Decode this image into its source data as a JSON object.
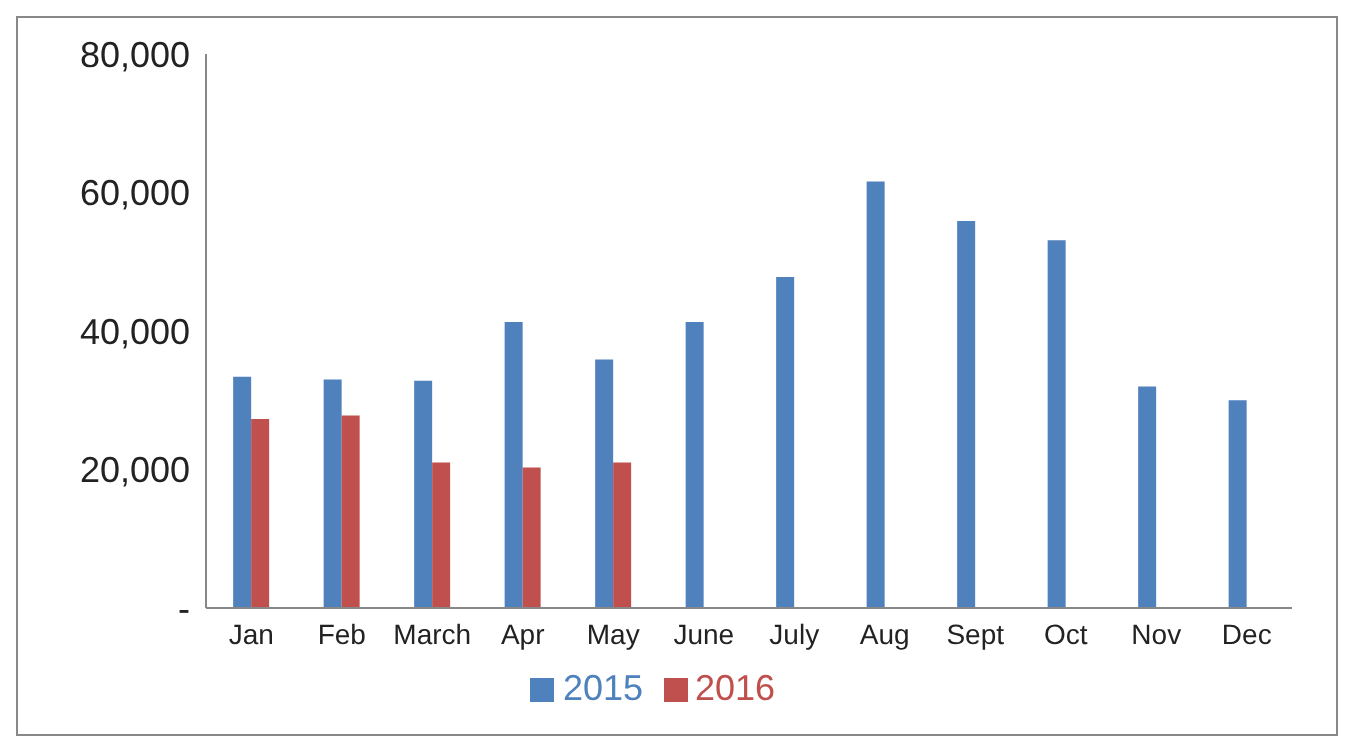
{
  "chart_data": {
    "type": "bar",
    "categories": [
      "Jan",
      "Feb",
      "March",
      "Apr",
      "May",
      "June",
      "July",
      "Aug",
      "Sept",
      "Oct",
      "Nov",
      "Dec"
    ],
    "series": [
      {
        "name": "2015",
        "color": "#4f81bd",
        "values": [
          33400,
          33000,
          32800,
          41300,
          35900,
          41300,
          47800,
          61600,
          55900,
          53100,
          32000,
          30000
        ]
      },
      {
        "name": "2016",
        "color": "#c0504d",
        "values": [
          27300,
          27800,
          21000,
          20300,
          21000,
          null,
          null,
          null,
          null,
          null,
          null,
          null
        ]
      }
    ],
    "ylim": [
      0,
      80000
    ],
    "yticks": [
      {
        "value": 0,
        "label": "-"
      },
      {
        "value": 20000,
        "label": "20,000"
      },
      {
        "value": 40000,
        "label": "40,000"
      },
      {
        "value": 60000,
        "label": "60,000"
      },
      {
        "value": 80000,
        "label": "80,000"
      }
    ],
    "grid": false,
    "legend": "bottom"
  }
}
